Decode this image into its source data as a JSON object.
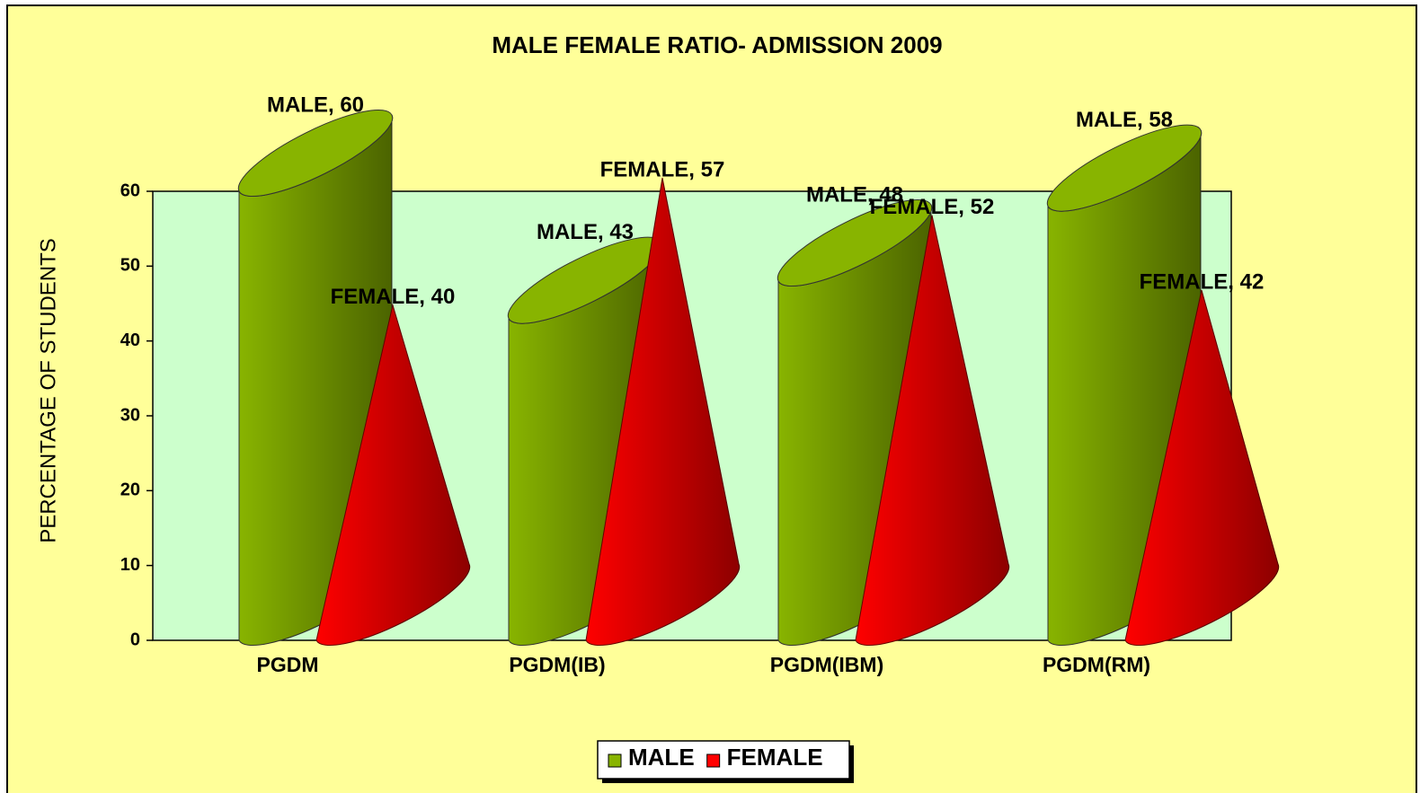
{
  "chart_data": {
    "type": "bar3d",
    "title": "MALE FEMALE RATIO- ADMISSION 2009",
    "y_label": "PERCENTAGE OF STUDENTS",
    "categories": [
      "PGDM",
      "PGDM(IB)",
      "PGDM(IBM)",
      "PGDM(RM)"
    ],
    "series": [
      {
        "name": "MALE",
        "color": "#88b400",
        "shape": "cylinder",
        "values": [
          60,
          43,
          48,
          58
        ],
        "value_labels": [
          "MALE, 60",
          "MALE, 43",
          "MALE, 48",
          "MALE, 58"
        ]
      },
      {
        "name": "FEMALE",
        "color": "#ff0000",
        "shape": "cone",
        "values": [
          40,
          57,
          52,
          42
        ],
        "value_labels": [
          "FEMALE, 40",
          "FEMALE, 57",
          "FEMALE, 52",
          "FEMALE, 42"
        ]
      }
    ],
    "ylim": [
      0,
      60
    ],
    "yticks": [
      0,
      10,
      20,
      30,
      40,
      50,
      60
    ],
    "legend": "bottom"
  }
}
